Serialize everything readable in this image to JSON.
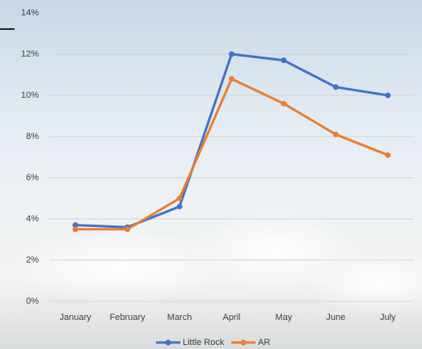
{
  "chart_data": {
    "type": "line",
    "categories": [
      "January",
      "February",
      "March",
      "April",
      "May",
      "June",
      "July"
    ],
    "series": [
      {
        "name": "Little Rock",
        "color": "#4472c4",
        "values": [
          3.7,
          3.6,
          4.6,
          12.0,
          11.7,
          10.4,
          10.0
        ]
      },
      {
        "name": "AR",
        "color": "#ed7d31",
        "values": [
          3.5,
          3.5,
          5.0,
          10.8,
          9.6,
          8.1,
          7.1
        ]
      }
    ],
    "ylim": [
      0,
      14
    ],
    "yticks": [
      {
        "value": 0,
        "label": "0%"
      },
      {
        "value": 2,
        "label": "2%"
      },
      {
        "value": 4,
        "label": "4%"
      },
      {
        "value": 6,
        "label": "6%"
      },
      {
        "value": 8,
        "label": "8%"
      },
      {
        "value": 10,
        "label": "10%"
      },
      {
        "value": 12,
        "label": "12%"
      },
      {
        "value": 14,
        "label": "14%"
      }
    ],
    "grid": true,
    "legend": "bottom"
  }
}
